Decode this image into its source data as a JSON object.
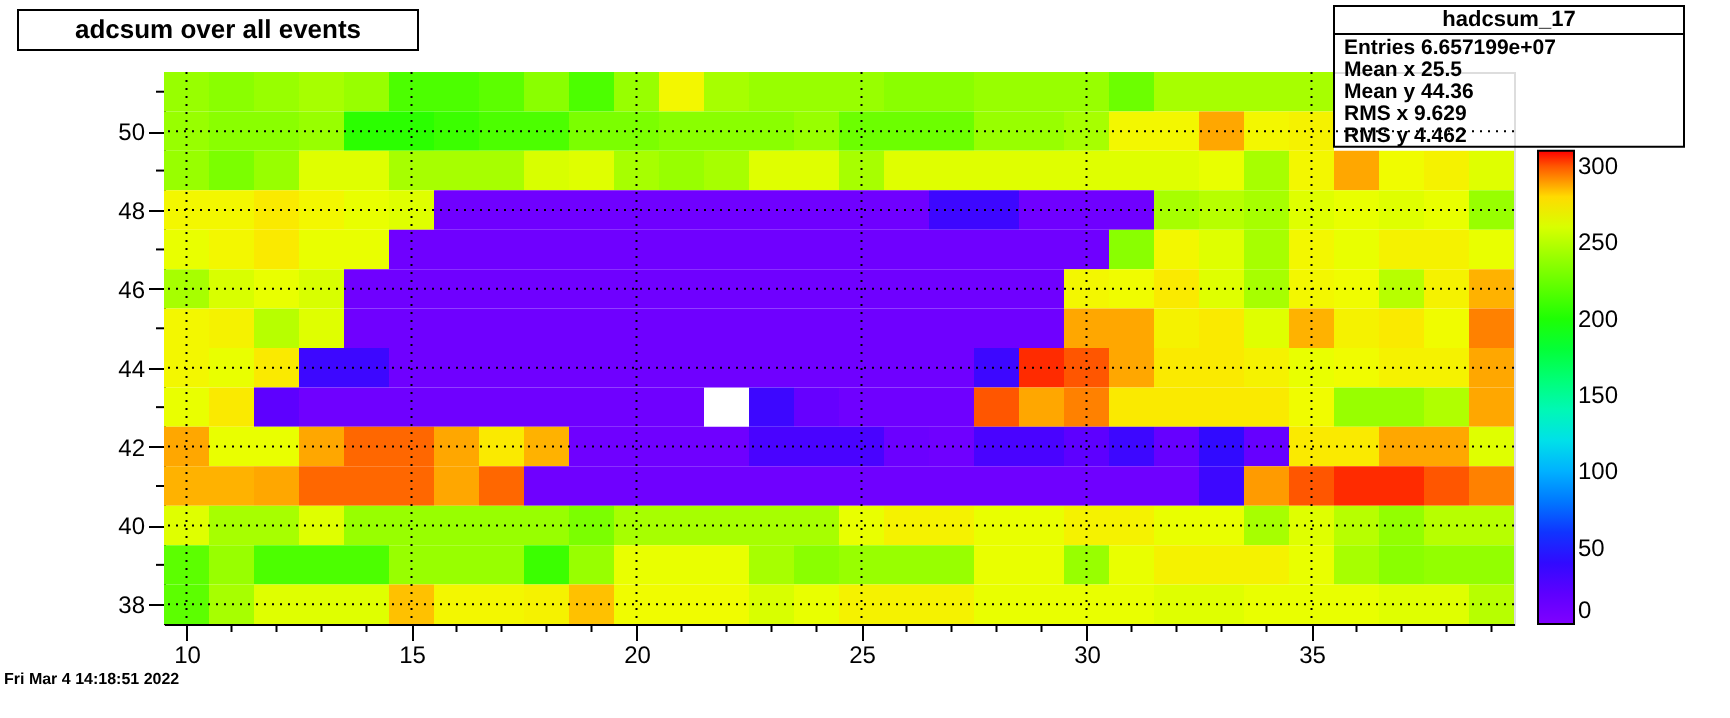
{
  "chart_data": {
    "type": "heatmap",
    "title": "adcsum over all events",
    "categories": [
      "10",
      null,
      null,
      null,
      null,
      "15",
      null,
      null,
      null,
      null,
      "20",
      null,
      null,
      null,
      null,
      "25",
      null,
      null,
      null,
      null,
      "30",
      null,
      null,
      null,
      null,
      "35",
      null,
      null,
      null,
      null
    ],
    "y_categories": [
      null,
      "50",
      null,
      "48",
      null,
      "46",
      null,
      "44",
      null,
      "42",
      null,
      "40",
      null,
      "38"
    ],
    "cells": [
      [
        240,
        235,
        240,
        245,
        240,
        215,
        215,
        220,
        235,
        215,
        240,
        270,
        245,
        240,
        240,
        240,
        235,
        235,
        240,
        240,
        240,
        225,
        245,
        245,
        245,
        245,
        null,
        null,
        null,
        null
      ],
      [
        240,
        235,
        235,
        240,
        205,
        205,
        210,
        215,
        215,
        230,
        230,
        235,
        235,
        235,
        240,
        225,
        225,
        225,
        240,
        240,
        245,
        270,
        270,
        290,
        270,
        272,
        null,
        null,
        null,
        null
      ],
      [
        240,
        230,
        240,
        262,
        262,
        245,
        245,
        245,
        260,
        262,
        245,
        240,
        245,
        262,
        262,
        245,
        262,
        262,
        262,
        262,
        262,
        262,
        262,
        265,
        245,
        270,
        290,
        268,
        272,
        262
      ],
      [
        270,
        270,
        275,
        270,
        265,
        262,
        10,
        10,
        10,
        10,
        10,
        10,
        10,
        10,
        10,
        10,
        10,
        35,
        35,
        10,
        10,
        10,
        245,
        250,
        245,
        262,
        265,
        262,
        265,
        240
      ],
      [
        265,
        270,
        275,
        265,
        265,
        10,
        10,
        10,
        10,
        10,
        10,
        10,
        10,
        10,
        10,
        10,
        10,
        10,
        10,
        10,
        10,
        235,
        270,
        262,
        245,
        270,
        265,
        272,
        272,
        265
      ],
      [
        245,
        260,
        265,
        260,
        10,
        10,
        10,
        10,
        10,
        10,
        10,
        10,
        10,
        10,
        10,
        10,
        10,
        10,
        10,
        10,
        270,
        268,
        275,
        262,
        245,
        270,
        268,
        250,
        272,
        288
      ],
      [
        270,
        272,
        250,
        262,
        10,
        10,
        10,
        10,
        10,
        10,
        10,
        10,
        10,
        10,
        10,
        10,
        10,
        10,
        10,
        10,
        290,
        290,
        272,
        275,
        262,
        288,
        272,
        275,
        268,
        295
      ],
      [
        270,
        265,
        275,
        35,
        35,
        10,
        10,
        10,
        10,
        10,
        10,
        10,
        10,
        10,
        10,
        10,
        10,
        10,
        35,
        305,
        300,
        290,
        275,
        275,
        272,
        265,
        268,
        272,
        272,
        290
      ],
      [
        265,
        275,
        20,
        10,
        10,
        10,
        10,
        10,
        10,
        10,
        10,
        10,
        null,
        35,
        15,
        10,
        10,
        10,
        300,
        290,
        295,
        275,
        275,
        275,
        275,
        268,
        240,
        240,
        248,
        290
      ],
      [
        290,
        265,
        265,
        290,
        298,
        298,
        290,
        275,
        288,
        10,
        10,
        10,
        10,
        30,
        30,
        30,
        12,
        10,
        30,
        30,
        20,
        35,
        15,
        40,
        15,
        275,
        275,
        290,
        290,
        262
      ],
      [
        288,
        288,
        290,
        298,
        298,
        298,
        290,
        298,
        10,
        10,
        10,
        10,
        10,
        10,
        10,
        10,
        10,
        10,
        10,
        10,
        10,
        10,
        10,
        35,
        292,
        300,
        305,
        305,
        300,
        295
      ],
      [
        262,
        245,
        245,
        262,
        240,
        240,
        240,
        240,
        240,
        230,
        245,
        245,
        245,
        245,
        245,
        265,
        272,
        272,
        265,
        265,
        272,
        272,
        265,
        265,
        245,
        262,
        250,
        238,
        250,
        250
      ],
      [
        220,
        240,
        215,
        215,
        215,
        240,
        240,
        240,
        210,
        240,
        265,
        265,
        265,
        245,
        235,
        240,
        240,
        240,
        265,
        265,
        240,
        265,
        272,
        272,
        272,
        265,
        245,
        235,
        238,
        238
      ],
      [
        220,
        245,
        262,
        262,
        262,
        285,
        270,
        270,
        272,
        285,
        268,
        268,
        268,
        260,
        265,
        272,
        272,
        272,
        265,
        265,
        265,
        265,
        262,
        262,
        265,
        265,
        265,
        262,
        262,
        250
      ]
    ],
    "clim": [
      0,
      310
    ],
    "cticks": [
      0,
      50,
      100,
      150,
      200,
      250,
      300
    ],
    "grid": true,
    "annotations": [
      "hadcsum_17",
      "Entries   6.657199e+07",
      "Mean x   25.5",
      "Mean y   44.36",
      "RMS x   9.629",
      "RMS y   4.462",
      "Fri Mar  4 14:18:51 2022"
    ]
  }
}
